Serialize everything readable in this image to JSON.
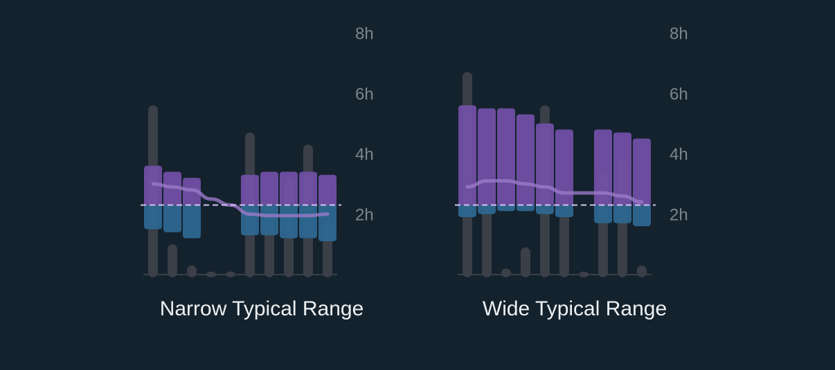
{
  "chart_data": [
    {
      "type": "bar",
      "title": "Narrow Typical Range",
      "y_ticks": [
        "2h",
        "4h",
        "6h",
        "8h"
      ],
      "ylim": [
        0,
        8
      ],
      "grid": false,
      "daily_hours": [
        5.6,
        1.0,
        0.3,
        0.1,
        0.1,
        4.7,
        2.4,
        3.2,
        4.3,
        1.7
      ],
      "typical_range": [
        {
          "low": 1.5,
          "high": 3.6
        },
        {
          "low": 1.4,
          "high": 3.4
        },
        {
          "low": 1.2,
          "high": 3.2
        },
        null,
        null,
        {
          "low": 1.3,
          "high": 3.3
        },
        {
          "low": 1.3,
          "high": 3.4
        },
        {
          "low": 1.2,
          "high": 3.4
        },
        {
          "low": 1.2,
          "high": 3.4
        },
        {
          "low": 1.1,
          "high": 3.3
        }
      ],
      "average_hours": [
        3.0,
        2.9,
        2.8,
        2.5,
        2.3,
        2.0,
        1.95,
        1.95,
        1.95,
        2.0
      ],
      "reference_hours": 2.3
    },
    {
      "type": "bar",
      "title": "Wide Typical Range",
      "y_ticks": [
        "2h",
        "4h",
        "6h",
        "8h"
      ],
      "ylim": [
        0,
        8
      ],
      "grid": false,
      "daily_hours": [
        6.7,
        2.4,
        0.2,
        0.9,
        5.6,
        2.0,
        0.1,
        3.4,
        3.8,
        0.3
      ],
      "typical_range": [
        {
          "low": 1.9,
          "high": 5.6
        },
        {
          "low": 2.0,
          "high": 5.5
        },
        {
          "low": 2.1,
          "high": 5.5
        },
        {
          "low": 2.1,
          "high": 5.3
        },
        {
          "low": 2.0,
          "high": 5.0
        },
        {
          "low": 1.9,
          "high": 4.8
        },
        null,
        {
          "low": 1.7,
          "high": 4.8
        },
        {
          "low": 1.7,
          "high": 4.7
        },
        {
          "low": 1.6,
          "high": 4.5
        }
      ],
      "average_hours": [
        2.9,
        3.1,
        3.1,
        3.0,
        2.9,
        2.7,
        2.7,
        2.7,
        2.6,
        2.4
      ],
      "reference_hours": 2.3
    }
  ],
  "colors": {
    "background": "#14222d",
    "daily_bar": "#3b3f47",
    "range_above": "#7350a8",
    "range_below": "#2d6790",
    "average_line": "#9b79c8",
    "reference_line": "#d6c3f5",
    "tick_label": "#7d868d",
    "caption": "#eef1f3"
  }
}
